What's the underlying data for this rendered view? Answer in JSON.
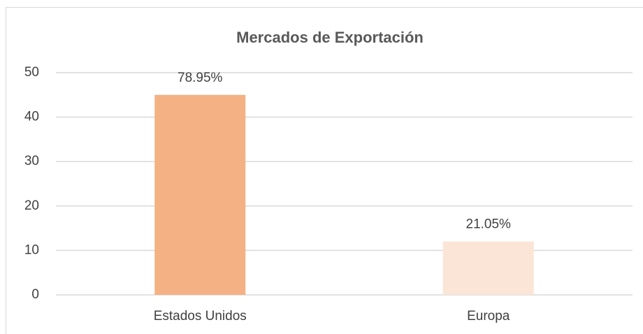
{
  "chart_data": {
    "type": "bar",
    "title": "Mercados de Exportación",
    "categories": [
      "Estados Unidos",
      "Europa"
    ],
    "values": [
      45,
      12
    ],
    "data_labels": [
      "78.95%",
      "21.05%"
    ],
    "colors": [
      "#F4B183",
      "#FBE5D6"
    ],
    "ylim": [
      0,
      50
    ],
    "yticks": [
      0,
      10,
      20,
      30,
      40,
      50
    ],
    "grid": true
  }
}
